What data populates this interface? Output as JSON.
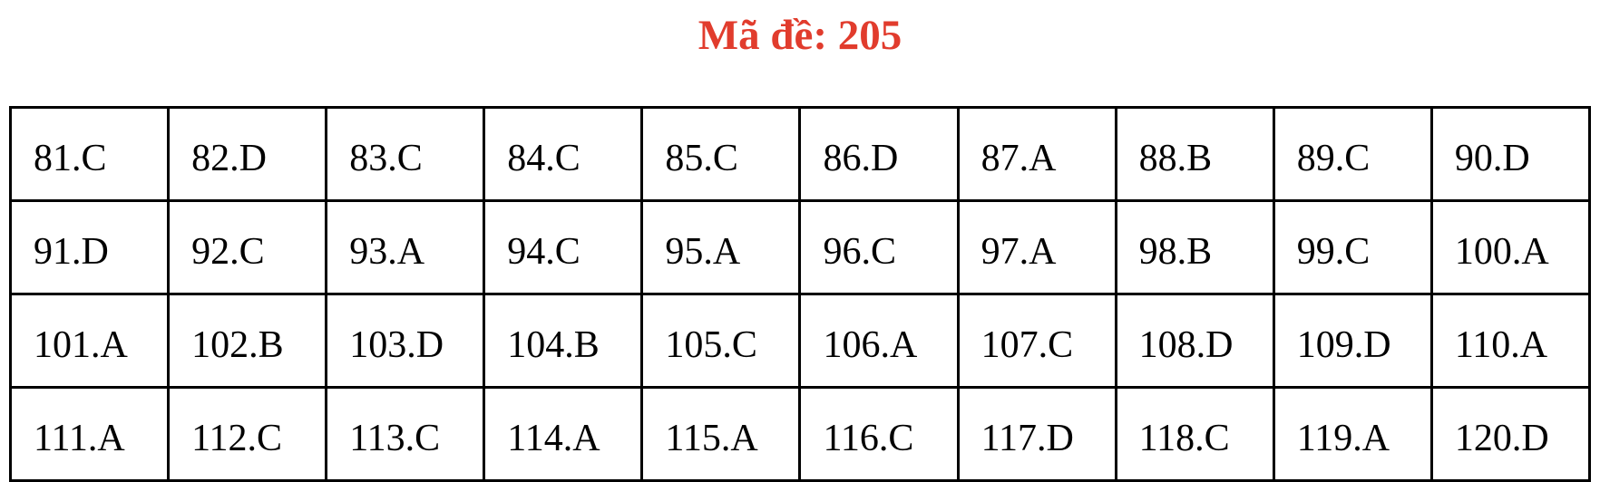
{
  "page": {
    "title_label": "Mã đề: 205",
    "title_color": "#e13c2d",
    "text_color": "#000000",
    "border_color": "#000000",
    "background_color": "#ffffff"
  },
  "answer_table": {
    "columns": 10,
    "rows": [
      [
        "81.C",
        "82.D",
        "83.C",
        "84.C",
        "85.C",
        "86.D",
        "87.A",
        "88.B",
        "89.C",
        "90.D"
      ],
      [
        "91.D",
        "92.C",
        "93.A",
        "94.C",
        "95.A",
        "96.C",
        "97.A",
        "98.B",
        "99.C",
        "100.A"
      ],
      [
        "101.A",
        "102.B",
        "103.D",
        "104.B",
        "105.C",
        "106.A",
        "107.C",
        "108.D",
        "109.D",
        "110.A"
      ],
      [
        "111.A",
        "112.C",
        "113.C",
        "114.A",
        "115.A",
        "116.C",
        "117.D",
        "118.C",
        "119.A",
        "120.D"
      ]
    ]
  }
}
